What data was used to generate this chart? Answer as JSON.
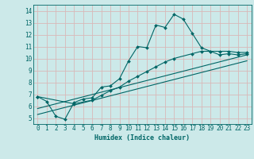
{
  "title": "",
  "xlabel": "Humidex (Indice chaleur)",
  "background_color": "#cce9e9",
  "grid_color": "#d9b8b8",
  "line_color": "#006666",
  "xlim": [
    -0.5,
    23.5
  ],
  "ylim": [
    4.5,
    14.5
  ],
  "xticks": [
    0,
    1,
    2,
    3,
    4,
    5,
    6,
    7,
    8,
    9,
    10,
    11,
    12,
    13,
    14,
    15,
    16,
    17,
    18,
    19,
    20,
    21,
    22,
    23
  ],
  "yticks": [
    5,
    6,
    7,
    8,
    9,
    10,
    11,
    12,
    13,
    14
  ],
  "curve1_x": [
    0,
    1,
    2,
    3,
    4,
    5,
    6,
    7,
    8,
    9,
    10,
    11,
    12,
    13,
    14,
    15,
    16,
    17,
    18,
    19,
    20,
    21,
    22,
    23
  ],
  "curve1_y": [
    6.8,
    6.4,
    5.15,
    4.9,
    6.3,
    6.6,
    6.7,
    7.6,
    7.7,
    8.3,
    9.8,
    11.0,
    10.9,
    12.8,
    12.6,
    13.7,
    13.3,
    12.1,
    10.9,
    10.6,
    10.3,
    10.4,
    10.3,
    10.4
  ],
  "curve2_x": [
    0,
    4,
    6,
    7,
    8,
    9,
    10,
    11,
    12,
    13,
    14,
    15,
    17,
    18,
    19,
    20,
    21,
    22,
    23
  ],
  "curve2_y": [
    6.8,
    6.2,
    6.5,
    6.9,
    7.3,
    7.6,
    8.1,
    8.5,
    8.9,
    9.3,
    9.7,
    10.0,
    10.4,
    10.6,
    10.6,
    10.6,
    10.6,
    10.5,
    10.5
  ],
  "curve3_x": [
    0,
    23
  ],
  "curve3_y": [
    5.8,
    10.3
  ],
  "curve4_x": [
    0,
    23
  ],
  "curve4_y": [
    5.3,
    9.8
  ]
}
